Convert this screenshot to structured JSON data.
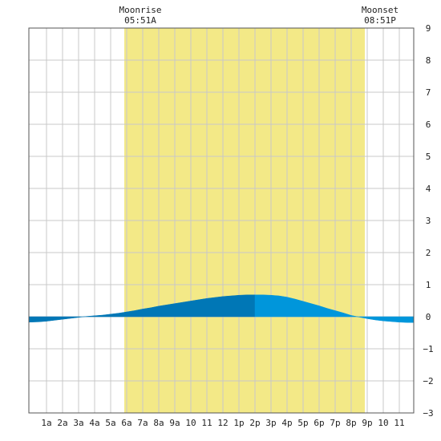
{
  "moon": {
    "rise_title": "Moonrise",
    "rise_time": "05:51A",
    "set_title": "Moonset",
    "set_time": "08:51P"
  },
  "chart_data": {
    "type": "area",
    "x_unit": "hour of day",
    "xlim": [
      -0.1,
      23.9
    ],
    "ylim": [
      -3,
      9
    ],
    "y_ticks": [
      9,
      8,
      7,
      6,
      5,
      4,
      3,
      2,
      1,
      0,
      -1,
      -2,
      -3
    ],
    "x_ticks": [
      {
        "x": 1,
        "label": "1a"
      },
      {
        "x": 2,
        "label": "2a"
      },
      {
        "x": 3,
        "label": "3a"
      },
      {
        "x": 4,
        "label": "4a"
      },
      {
        "x": 5,
        "label": "5a"
      },
      {
        "x": 6,
        "label": "6a"
      },
      {
        "x": 7,
        "label": "7a"
      },
      {
        "x": 8,
        "label": "8a"
      },
      {
        "x": 9,
        "label": "9a"
      },
      {
        "x": 10,
        "label": "10"
      },
      {
        "x": 11,
        "label": "11"
      },
      {
        "x": 12,
        "label": "12"
      },
      {
        "x": 13,
        "label": "1p"
      },
      {
        "x": 14,
        "label": "2p"
      },
      {
        "x": 15,
        "label": "3p"
      },
      {
        "x": 16,
        "label": "4p"
      },
      {
        "x": 17,
        "label": "5p"
      },
      {
        "x": 18,
        "label": "6p"
      },
      {
        "x": 19,
        "label": "7p"
      },
      {
        "x": 20,
        "label": "8p"
      },
      {
        "x": 21,
        "label": "9p"
      },
      {
        "x": 22,
        "label": "10"
      },
      {
        "x": 23,
        "label": "11"
      }
    ],
    "moon_up": {
      "start": 5.85,
      "end": 20.85
    },
    "grid": true,
    "colors": {
      "moon_band": "#f3e987",
      "fill_before_peak": "#0077b6",
      "fill_after_peak": "#0096db",
      "grid": "#c8c8c8",
      "frame": "#555555"
    },
    "tide": {
      "x": [
        -0.1,
        0.5,
        1.0,
        1.5,
        2.0,
        2.5,
        3.0,
        3.5,
        4.0,
        4.5,
        5.0,
        5.5,
        6.0,
        6.5,
        7.0,
        7.5,
        8.0,
        8.5,
        9.0,
        9.5,
        10.0,
        10.5,
        11.0,
        11.5,
        12.0,
        12.5,
        13.0,
        13.5,
        14.0,
        14.5,
        15.0,
        15.5,
        16.0,
        16.5,
        17.0,
        17.5,
        18.0,
        18.5,
        19.0,
        19.5,
        20.0,
        20.5,
        21.0,
        21.5,
        22.0,
        22.5,
        23.0,
        23.5,
        23.9
      ],
      "y": [
        -0.17,
        -0.16,
        -0.14,
        -0.11,
        -0.08,
        -0.05,
        -0.02,
        0.01,
        0.03,
        0.05,
        0.08,
        0.11,
        0.15,
        0.19,
        0.24,
        0.28,
        0.33,
        0.37,
        0.41,
        0.45,
        0.49,
        0.53,
        0.57,
        0.6,
        0.63,
        0.65,
        0.67,
        0.68,
        0.68,
        0.68,
        0.67,
        0.65,
        0.61,
        0.55,
        0.48,
        0.41,
        0.34,
        0.26,
        0.19,
        0.12,
        0.04,
        -0.01,
        -0.06,
        -0.1,
        -0.13,
        -0.15,
        -0.17,
        -0.18,
        -0.18
      ],
      "peak_x": 14.0
    }
  }
}
